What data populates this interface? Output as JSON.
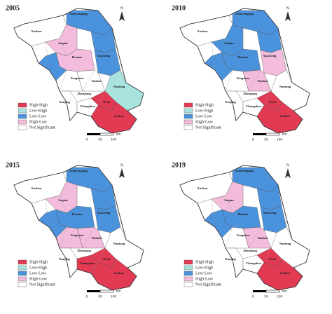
{
  "panels": [
    {
      "title": "2005"
    },
    {
      "title": "2010"
    },
    {
      "title": "2015"
    },
    {
      "title": "2019"
    }
  ],
  "north": "N",
  "legend": [
    {
      "label": "High-High",
      "color": "#e23a52"
    },
    {
      "label": "Low-High",
      "color": "#a9e3df"
    },
    {
      "label": "Low-Low",
      "color": "#4a92dc"
    },
    {
      "label": "High-Low",
      "color": "#f3bcdc"
    },
    {
      "label": "Not Significant",
      "color": "#ffffff"
    }
  ],
  "scale": {
    "ticks": [
      "0",
      "50",
      "100"
    ],
    "unit": "km"
  },
  "cities": [
    "Lianyungang",
    "Xuzhou",
    "Suqian",
    "Huaian",
    "Yancheng",
    "Yangzhou",
    "Taizhou",
    "Nantong",
    "Zhenjiang",
    "Nanjing",
    "Changzhou",
    "Wuxi",
    "Suzhou"
  ]
}
